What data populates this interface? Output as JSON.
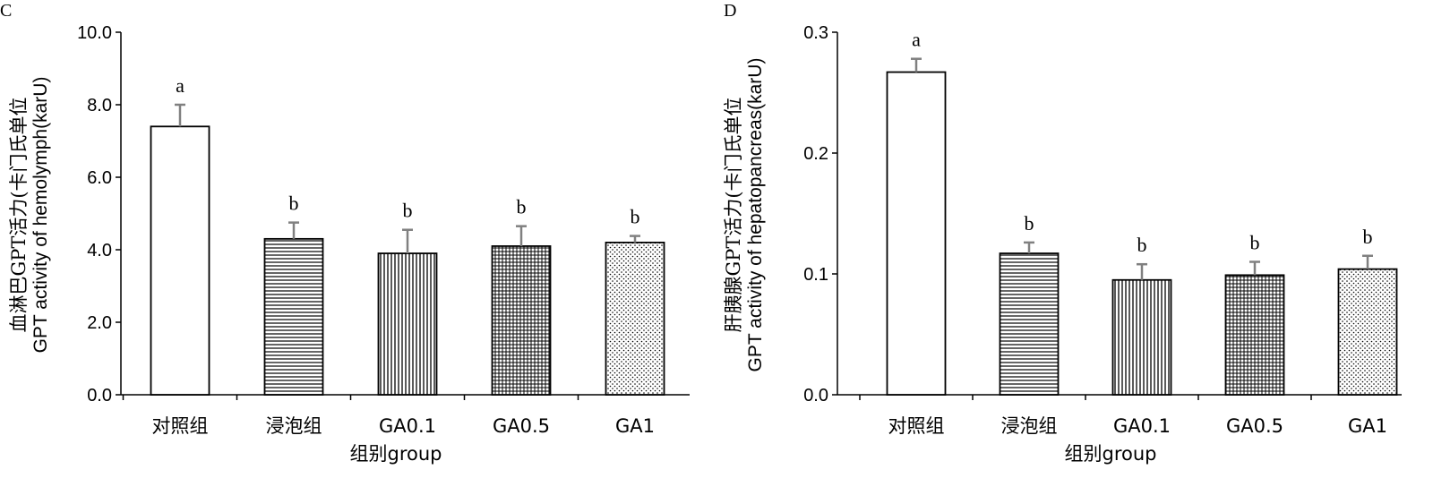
{
  "chart_data": [
    {
      "type": "bar",
      "panel": "C",
      "ylabel": [
        "血淋巴GPT活力(卡门氏单位",
        "GPT activity of hemolymph(karU)"
      ],
      "xlabel": "组别group",
      "categories": [
        "对照组",
        "浸泡组",
        "GA0.1",
        "GA0.5",
        "GA1"
      ],
      "values": [
        7.4,
        4.3,
        3.9,
        4.1,
        4.2
      ],
      "errors": [
        0.6,
        0.45,
        0.65,
        0.55,
        0.18
      ],
      "labels": [
        "a",
        "b",
        "b",
        "b",
        "b"
      ],
      "ylim": [
        0,
        10
      ],
      "yticks": [
        "0.0",
        "2.0",
        "4.0",
        "6.0",
        "8.0",
        "10.0"
      ],
      "patterns": [
        "none",
        "hlines",
        "vlines",
        "grid",
        "dots"
      ]
    },
    {
      "type": "bar",
      "panel": "D",
      "ylabel": [
        "肝胰腺GPT活力(卡门氏单位",
        "GPT activity of hepatopancreas(karU)"
      ],
      "xlabel": "组别group",
      "categories": [
        "对照组",
        "浸泡组",
        "GA0.1",
        "GA0.5",
        "GA1"
      ],
      "values": [
        0.267,
        0.117,
        0.095,
        0.099,
        0.104
      ],
      "errors": [
        0.011,
        0.009,
        0.013,
        0.011,
        0.011
      ],
      "labels": [
        "a",
        "b",
        "b",
        "b",
        "b"
      ],
      "ylim": [
        0,
        0.3
      ],
      "yticks": [
        "0.0",
        "0.1",
        "0.2",
        "0.3"
      ],
      "patterns": [
        "none",
        "hlines",
        "vlines",
        "grid",
        "dots"
      ]
    }
  ]
}
